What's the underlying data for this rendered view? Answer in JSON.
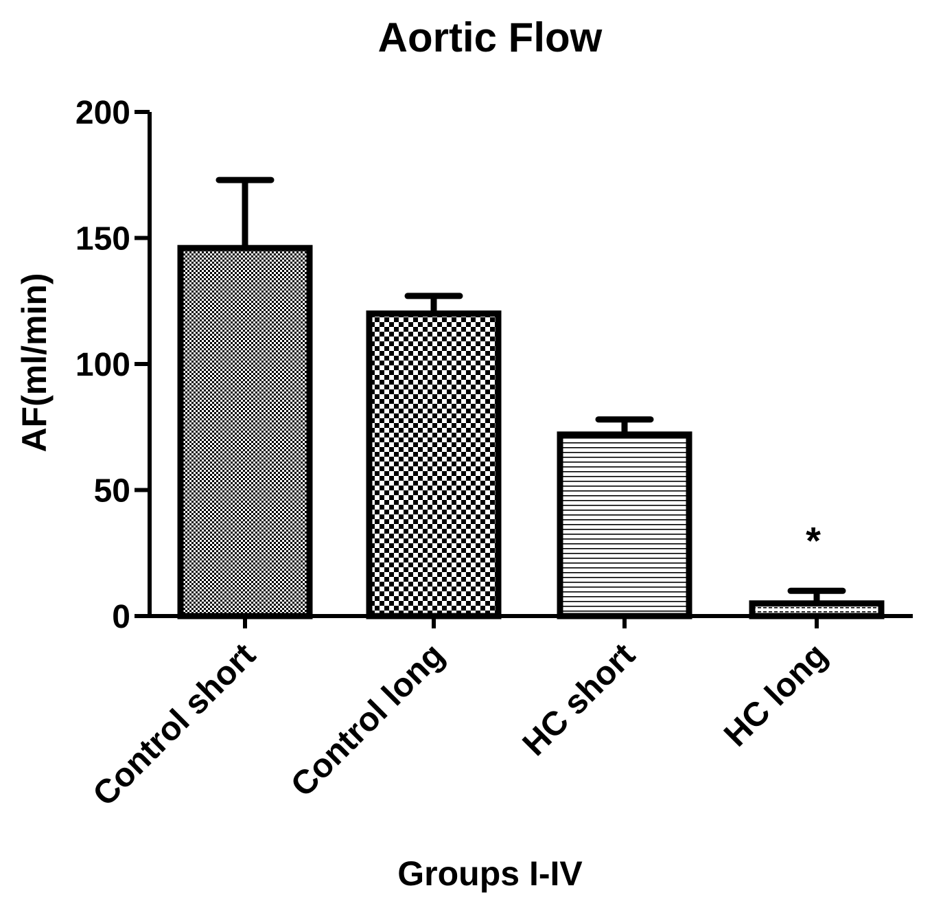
{
  "chart_data": {
    "type": "bar",
    "title": "Aortic Flow",
    "xlabel": "Groups I-IV",
    "ylabel": "AF(ml/min)",
    "categories": [
      "Control short",
      "Control long",
      "HC short",
      "HC long"
    ],
    "values": [
      146,
      120,
      72,
      5
    ],
    "error_upper": [
      27,
      7,
      6,
      5
    ],
    "annotations": [
      "",
      "",
      "",
      "*"
    ],
    "ylim": [
      0,
      200
    ],
    "yticks": [
      0,
      50,
      100,
      150,
      200
    ],
    "ytick_labels": [
      "0",
      "50",
      "100",
      "150",
      "200"
    ],
    "fill_patterns": [
      "fine-dots",
      "checker",
      "horizontal-lines",
      "dashed-lines"
    ],
    "grid": false,
    "legend": "none",
    "colors": {
      "stroke": "#000000",
      "fill": "#ffffff",
      "pattern": "#000000"
    }
  }
}
